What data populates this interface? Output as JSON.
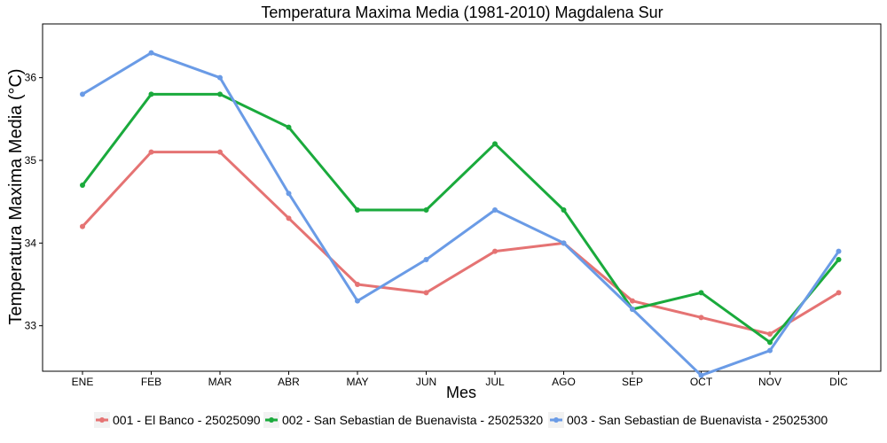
{
  "chart_data": {
    "type": "line",
    "title": "Temperatura Maxima Media (1981-2010)  Magdalena Sur",
    "xlabel": "Mes",
    "ylabel": "Temperatura Maxima Media  (°C)",
    "categories": [
      "ENE",
      "FEB",
      "MAR",
      "ABR",
      "MAY",
      "JUN",
      "JUL",
      "AGO",
      "SEP",
      "OCT",
      "NOV",
      "DIC"
    ],
    "ylim": [
      32.45,
      36.65
    ],
    "yticks": [
      33,
      34,
      35,
      36
    ],
    "grid": false,
    "legend_position": "bottom",
    "series": [
      {
        "name": "001 - El Banco - 25025090",
        "color": "#E57373",
        "values": [
          34.2,
          35.1,
          35.1,
          34.3,
          33.5,
          33.4,
          33.9,
          34.0,
          33.3,
          33.1,
          32.9,
          33.4
        ]
      },
      {
        "name": "002 - San Sebastian de Buenavista - 25025320",
        "color": "#1AAA3C",
        "values": [
          34.7,
          35.8,
          35.8,
          35.4,
          34.4,
          34.4,
          35.2,
          34.4,
          33.2,
          33.4,
          32.8,
          33.8
        ]
      },
      {
        "name": "003 - San Sebastian de Buenavista - 25025300",
        "color": "#6A9BE6",
        "values": [
          35.8,
          36.3,
          36.0,
          34.6,
          33.3,
          33.8,
          34.4,
          34.0,
          33.2,
          32.4,
          32.7,
          33.9
        ]
      }
    ]
  }
}
